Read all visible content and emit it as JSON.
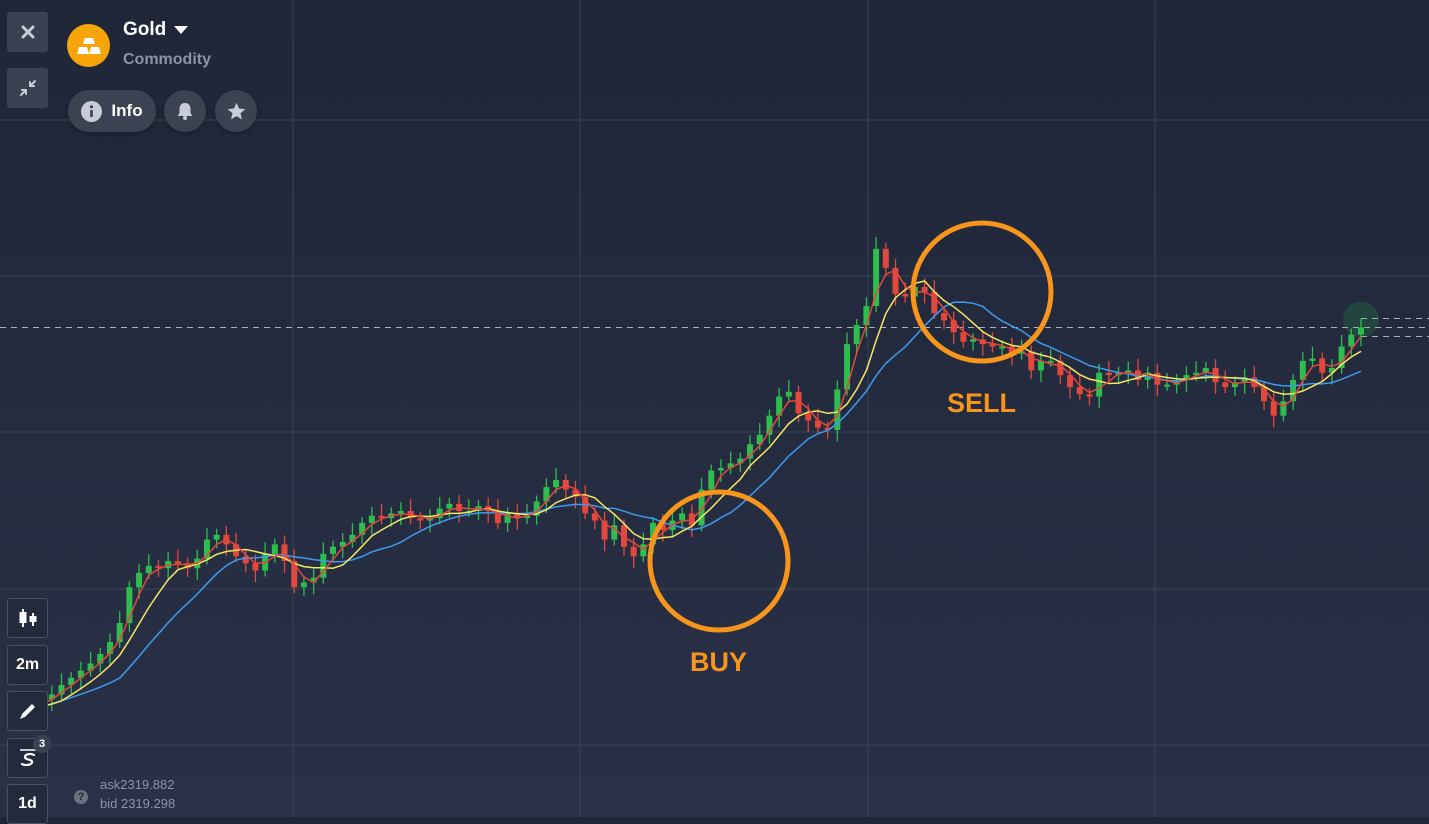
{
  "asset": {
    "name": "Gold",
    "type": "Commodity"
  },
  "toolbar_top": {
    "close_icon": "close-icon",
    "collapse_icon": "collapse-icon"
  },
  "actions": {
    "info_label": "Info",
    "alert_icon": "bell-icon",
    "favorite_icon": "star-icon"
  },
  "left_tools": {
    "chart_type_icon": "candles-icon",
    "timeframe_label": "2m",
    "drawing_icon": "pencil-icon",
    "indicators_count": "3",
    "period_label": "1d"
  },
  "quote": {
    "ask": "ask2319.882",
    "bid": "bid 2319.298"
  },
  "annotations": {
    "buy_label": "BUY",
    "sell_label": "SELL"
  },
  "colors": {
    "background": "#232a3c",
    "bull_candle": "#2ebd4e",
    "bear_candle": "#e2483b",
    "ma_red": "#e2483b",
    "ma_yellow": "#f5e663",
    "ma_blue": "#3d9bef",
    "annotation": "#f7951d",
    "asset_logo": "#f7a30a"
  },
  "chart_data": {
    "type": "candlestick",
    "grid": true,
    "current_price_line": "dashed",
    "indicators": [
      "moving-average-fast",
      "moving-average-medium",
      "moving-average-slow"
    ],
    "closes": [
      2306.1,
      2306.3,
      2306.5,
      2306.7,
      2306.9,
      2307.3,
      2307.6,
      2307.9,
      2308.2,
      2308.6,
      2309.1,
      2309.9,
      2311.4,
      2312.0,
      2312.3,
      2312.2,
      2312.5,
      2312.4,
      2312.2,
      2312.6,
      2313.4,
      2313.6,
      2313.2,
      2312.7,
      2312.4,
      2312.1,
      2312.8,
      2313.2,
      2312.5,
      2311.4,
      2311.6,
      2311.8,
      2312.8,
      2313.1,
      2313.3,
      2313.6,
      2314.1,
      2314.4,
      2314.3,
      2314.5,
      2314.6,
      2314.3,
      2314.2,
      2314.3,
      2314.7,
      2314.9,
      2314.6,
      2314.6,
      2314.8,
      2314.6,
      2314.1,
      2314.5,
      2314.3,
      2314.4,
      2315.0,
      2315.6,
      2315.9,
      2315.5,
      2315.2,
      2314.5,
      2314.2,
      2313.4,
      2314.0,
      2313.1,
      2312.7,
      2313.2,
      2314.1,
      2313.8,
      2314.2,
      2314.5,
      2314.0,
      2315.5,
      2316.3,
      2316.4,
      2316.6,
      2316.8,
      2317.4,
      2317.8,
      2318.6,
      2319.4,
      2319.6,
      2318.7,
      2318.4,
      2318.1,
      2318.0,
      2319.7,
      2321.6,
      2322.4,
      2323.2,
      2325.6,
      2324.8,
      2323.7,
      2323.6,
      2324.0,
      2323.8,
      2322.9,
      2322.6,
      2322.1,
      2321.7,
      2321.8,
      2321.6,
      2321.5,
      2321.5,
      2321.2,
      2321.3,
      2320.5,
      2320.9,
      2320.9,
      2320.3,
      2319.8,
      2319.5,
      2319.4,
      2320.4,
      2320.3,
      2320.4,
      2320.5,
      2320.1,
      2320.4,
      2319.9,
      2319.9,
      2320.1,
      2320.3,
      2320.4,
      2320.6,
      2320.0,
      2319.8,
      2320.0,
      2320.2,
      2319.8,
      2319.2,
      2318.6,
      2319.2,
      2320.1,
      2320.9,
      2321.0,
      2320.4,
      2320.6,
      2321.5,
      2322.0,
      2322.3
    ]
  }
}
